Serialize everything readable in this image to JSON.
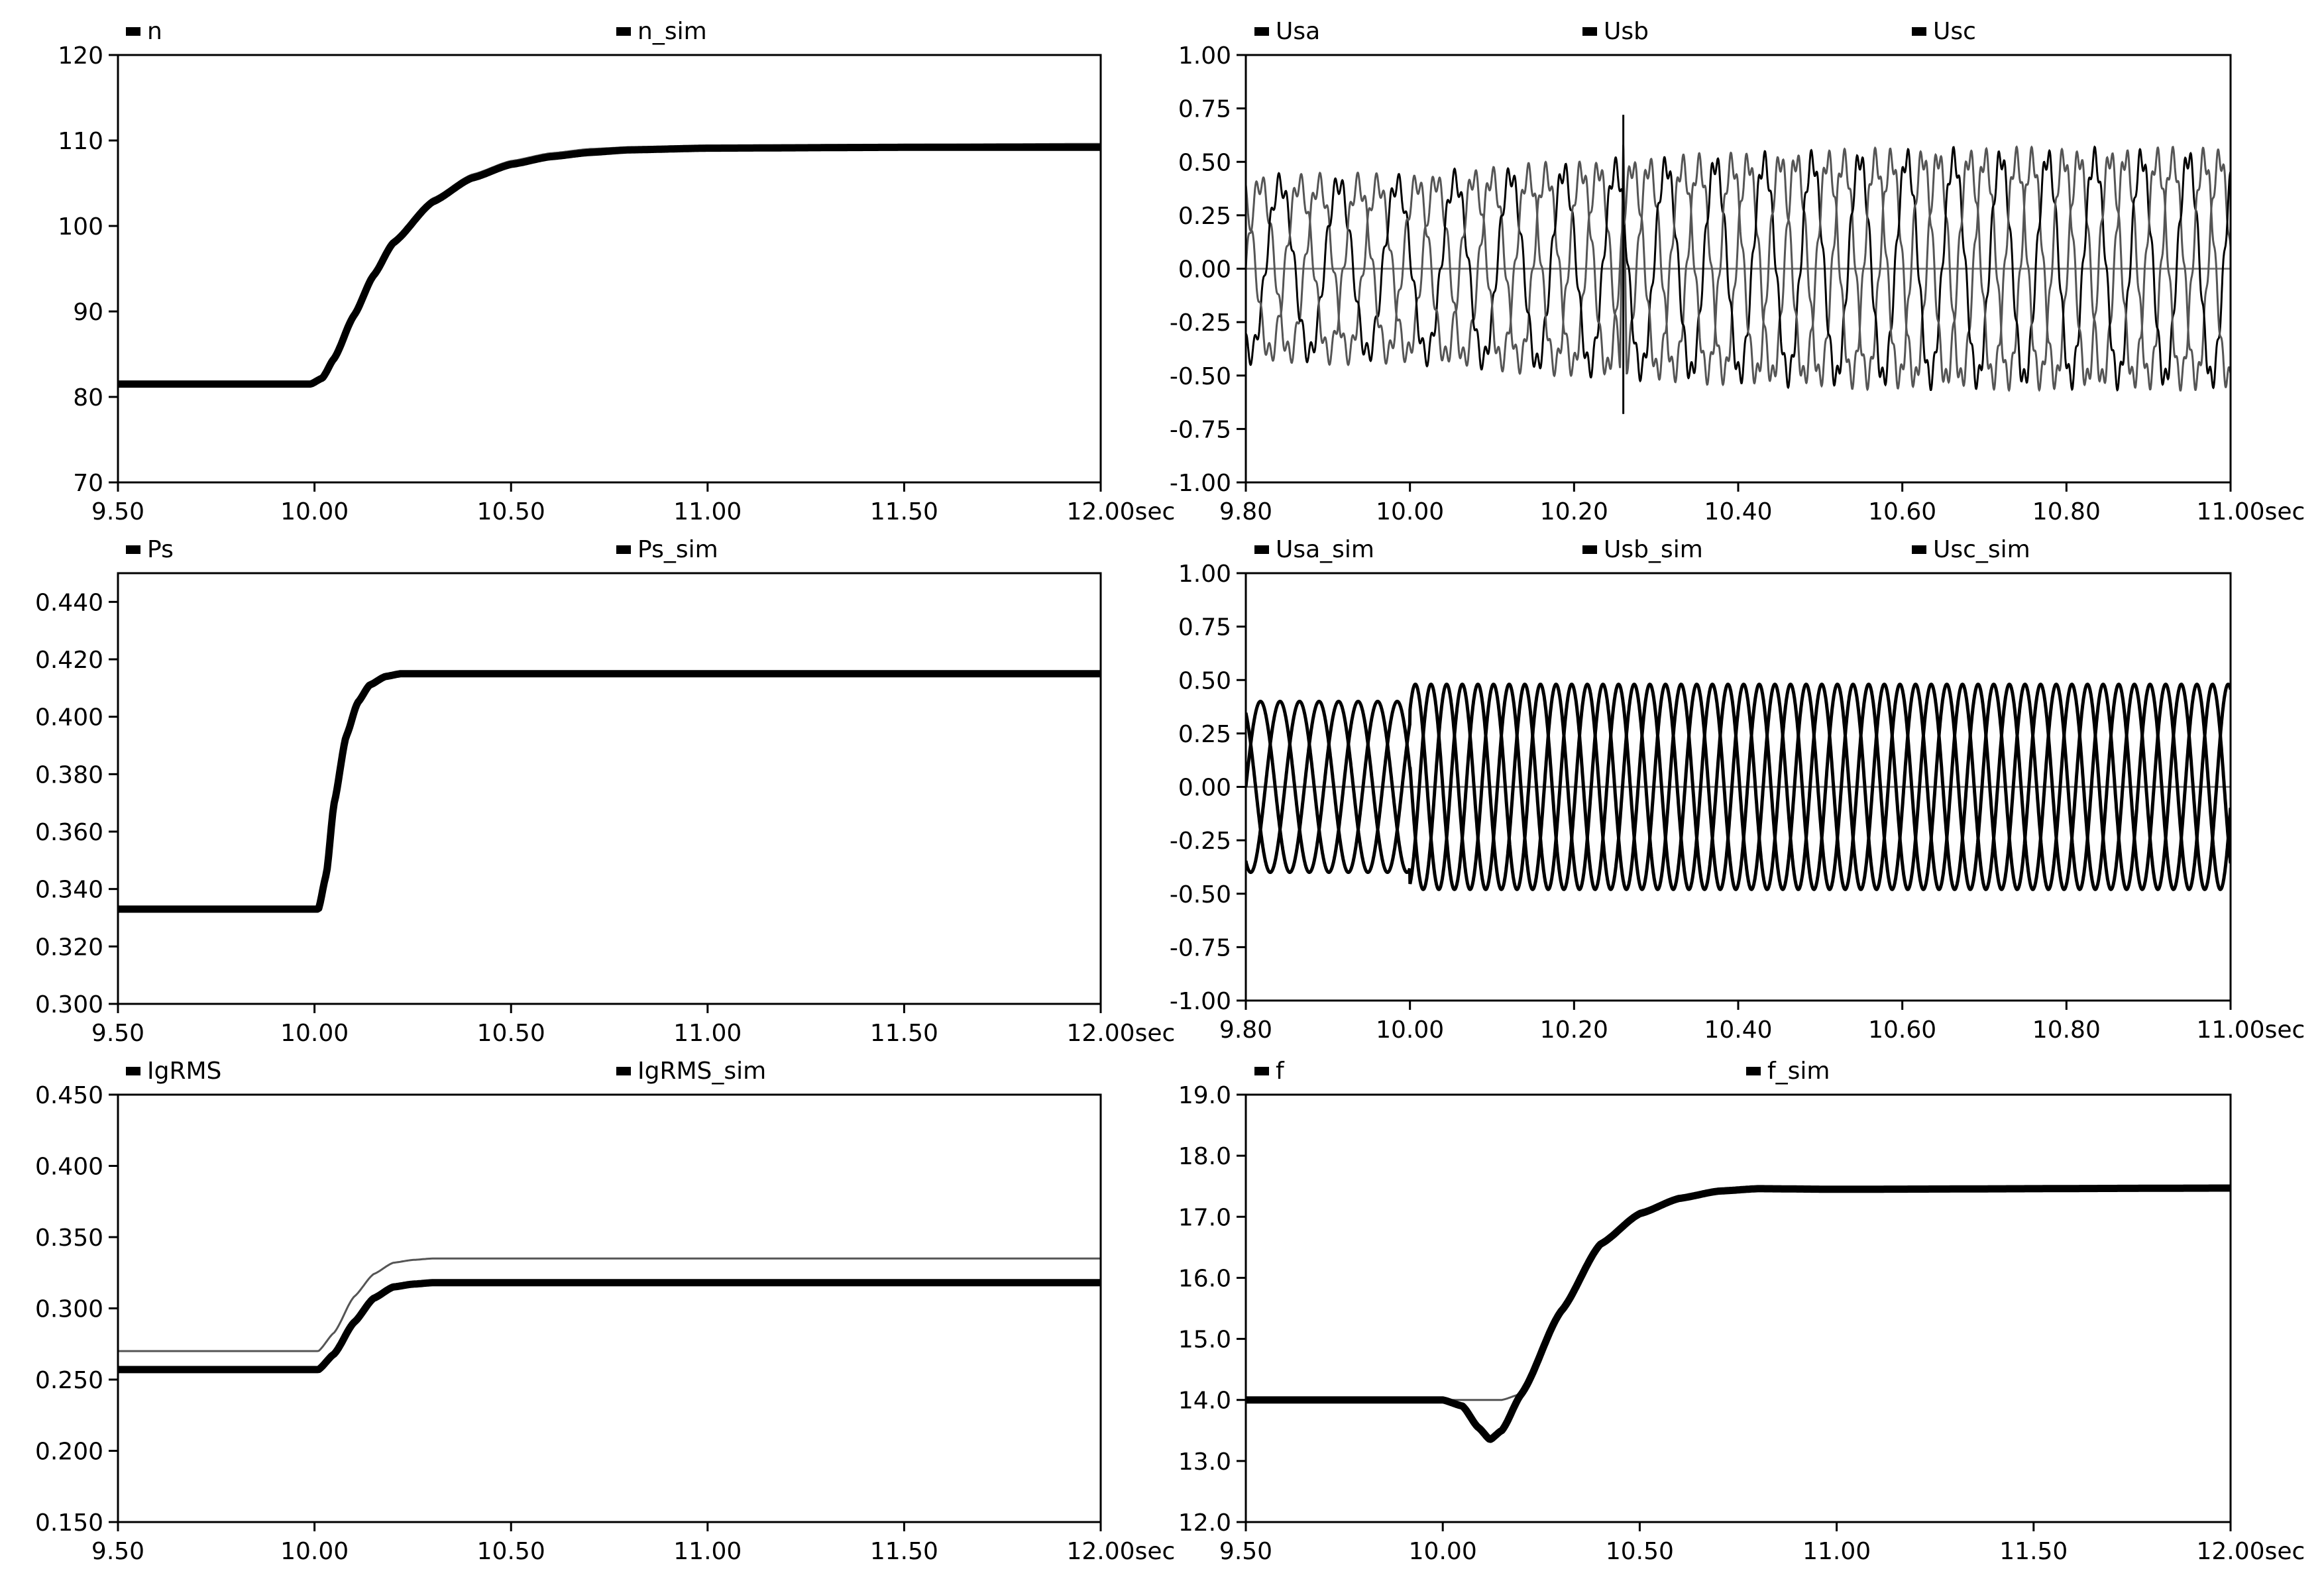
{
  "style": {
    "background": "#ffffff",
    "axis_color": "#000000",
    "trace_primary": "#000000",
    "trace_secondary": "#555555",
    "zero_line": "#808080"
  },
  "chart_data": [
    {
      "id": "n",
      "type": "line",
      "xlim": [
        9.5,
        12.0
      ],
      "ylim": [
        70,
        120
      ],
      "xticks": [
        9.5,
        10.0,
        10.5,
        11.0,
        11.5,
        12.0
      ],
      "xtick_labels": [
        "9.50",
        "10.00",
        "10.50",
        "11.00",
        "11.50",
        "12.00"
      ],
      "yticks": [
        70,
        80,
        90,
        100,
        110,
        120
      ],
      "ytick_labels": [
        "70",
        "80",
        "90",
        "100",
        "110",
        "120"
      ],
      "xunit": "sec",
      "legend": [
        "n",
        "n_sim"
      ],
      "series": [
        {
          "name": "n",
          "x": [
            9.5,
            9.99,
            10.02,
            10.05,
            10.1,
            10.15,
            10.2,
            10.3,
            10.4,
            10.5,
            10.6,
            10.7,
            10.8,
            11.0,
            11.5,
            12.0
          ],
          "values": [
            81.5,
            81.5,
            82.2,
            84.5,
            89.5,
            94.2,
            98.0,
            102.8,
            105.6,
            107.2,
            108.1,
            108.6,
            108.9,
            109.1,
            109.2,
            109.2
          ]
        },
        {
          "name": "n_sim",
          "x": [
            9.5,
            9.99,
            10.02,
            10.05,
            10.1,
            10.15,
            10.2,
            10.3,
            10.4,
            10.5,
            10.6,
            10.7,
            10.8,
            11.0,
            11.5,
            12.0
          ],
          "values": [
            81.5,
            81.5,
            82.3,
            84.7,
            89.8,
            94.6,
            98.4,
            103.2,
            106.0,
            107.6,
            108.5,
            109.0,
            109.2,
            109.4,
            109.5,
            109.6
          ]
        }
      ]
    },
    {
      "id": "usabc",
      "type": "line",
      "xlim": [
        9.8,
        11.0
      ],
      "ylim": [
        -1.0,
        1.0
      ],
      "xticks": [
        9.8,
        10.0,
        10.2,
        10.4,
        10.6,
        10.8,
        11.0
      ],
      "xtick_labels": [
        "9.80",
        "10.00",
        "10.20",
        "10.40",
        "10.60",
        "10.80",
        "11.00"
      ],
      "yticks": [
        -1.0,
        -0.75,
        -0.5,
        -0.25,
        0.0,
        0.25,
        0.5,
        0.75,
        1.0
      ],
      "ytick_labels": [
        "-1.00",
        "-0.75",
        "-0.50",
        "-0.25",
        "0.00",
        "0.25",
        "0.50",
        "0.75",
        "1.00"
      ],
      "xunit": "sec",
      "legend": [
        "Usa",
        "Usb",
        "Usc"
      ],
      "waveform": {
        "amplitude_before": 0.4,
        "amplitude_after": 0.52,
        "frequency_before": 14.0,
        "frequency_after": 17.5,
        "transition": [
          10.0,
          10.7
        ],
        "spike": {
          "t": 10.26,
          "peak": 0.72,
          "trough": -0.68
        }
      }
    },
    {
      "id": "ps",
      "type": "line",
      "xlim": [
        9.5,
        12.0
      ],
      "ylim": [
        0.3,
        0.45
      ],
      "xticks": [
        9.5,
        10.0,
        10.5,
        11.0,
        11.5,
        12.0
      ],
      "xtick_labels": [
        "9.50",
        "10.00",
        "10.50",
        "11.00",
        "11.50",
        "12.00"
      ],
      "yticks": [
        0.3,
        0.32,
        0.34,
        0.36,
        0.38,
        0.4,
        0.42,
        0.44
      ],
      "ytick_labels": [
        "0.300",
        "0.320",
        "0.340",
        "0.360",
        "0.380",
        "0.400",
        "0.420",
        "0.440"
      ],
      "xunit": "sec",
      "legend": [
        "Ps",
        "Ps_sim"
      ],
      "series": [
        {
          "name": "Ps",
          "x": [
            9.5,
            10.01,
            10.03,
            10.05,
            10.08,
            10.11,
            10.14,
            10.18,
            10.22,
            10.3,
            12.0
          ],
          "values": [
            0.333,
            0.333,
            0.345,
            0.37,
            0.393,
            0.405,
            0.411,
            0.414,
            0.415,
            0.415,
            0.415
          ]
        },
        {
          "name": "Ps_sim",
          "x": [
            9.5,
            10.01,
            10.03,
            10.05,
            10.08,
            10.11,
            10.14,
            10.18,
            10.22,
            10.3,
            12.0
          ],
          "values": [
            0.333,
            0.333,
            0.345,
            0.37,
            0.393,
            0.405,
            0.411,
            0.414,
            0.415,
            0.415,
            0.415
          ]
        }
      ]
    },
    {
      "id": "usabc_sim",
      "type": "line",
      "xlim": [
        9.8,
        11.0
      ],
      "ylim": [
        -1.0,
        1.0
      ],
      "xticks": [
        9.8,
        10.0,
        10.2,
        10.4,
        10.6,
        10.8,
        11.0
      ],
      "xtick_labels": [
        "9.80",
        "10.00",
        "10.20",
        "10.40",
        "10.60",
        "10.80",
        "11.00"
      ],
      "yticks": [
        -1.0,
        -0.75,
        -0.5,
        -0.25,
        0.0,
        0.25,
        0.5,
        0.75,
        1.0
      ],
      "ytick_labels": [
        "-1.00",
        "-0.75",
        "-0.50",
        "-0.25",
        "0.00",
        "0.25",
        "0.50",
        "0.75",
        "1.00"
      ],
      "xunit": "sec",
      "legend": [
        "Usa_sim",
        "Usb_sim",
        "Usc_sim"
      ],
      "waveform": {
        "amplitude_before": 0.4,
        "amplitude_after": 0.48,
        "frequency_before": 14.0,
        "frequency_after": 17.5,
        "step_time": 10.0
      }
    },
    {
      "id": "igrms",
      "type": "line",
      "xlim": [
        9.5,
        12.0
      ],
      "ylim": [
        0.15,
        0.45
      ],
      "xticks": [
        9.5,
        10.0,
        10.5,
        11.0,
        11.5,
        12.0
      ],
      "xtick_labels": [
        "9.50",
        "10.00",
        "10.50",
        "11.00",
        "11.50",
        "12.00"
      ],
      "yticks": [
        0.15,
        0.2,
        0.25,
        0.3,
        0.35,
        0.4,
        0.45
      ],
      "ytick_labels": [
        "0.150",
        "0.200",
        "0.250",
        "0.300",
        "0.350",
        "0.400",
        "0.450"
      ],
      "xunit": "sec",
      "legend": [
        "IgRMS",
        "IgRMS_sim"
      ],
      "series": [
        {
          "name": "IgRMS",
          "x": [
            9.5,
            10.01,
            10.05,
            10.1,
            10.15,
            10.2,
            10.25,
            10.3,
            12.0
          ],
          "values": [
            0.257,
            0.257,
            0.268,
            0.29,
            0.307,
            0.315,
            0.317,
            0.318,
            0.318
          ]
        },
        {
          "name": "IgRMS_sim",
          "x": [
            9.5,
            10.01,
            10.05,
            10.1,
            10.15,
            10.2,
            10.25,
            10.3,
            12.0
          ],
          "values": [
            0.27,
            0.27,
            0.283,
            0.308,
            0.324,
            0.332,
            0.334,
            0.335,
            0.335
          ]
        }
      ]
    },
    {
      "id": "f",
      "type": "line",
      "xlim": [
        9.5,
        12.0
      ],
      "ylim": [
        12.0,
        19.0
      ],
      "xticks": [
        9.5,
        10.0,
        10.5,
        11.0,
        11.5,
        12.0
      ],
      "xtick_labels": [
        "9.50",
        "10.00",
        "10.50",
        "11.00",
        "11.50",
        "12.00"
      ],
      "yticks": [
        12,
        13,
        14,
        15,
        16,
        17,
        18,
        19
      ],
      "ytick_labels": [
        "12.0",
        "13.0",
        "14.0",
        "15.0",
        "16.0",
        "17.0",
        "18.0",
        "19.0"
      ],
      "xunit": "sec",
      "legend": [
        "f",
        "f_sim"
      ],
      "series": [
        {
          "name": "f",
          "x": [
            9.5,
            10.0,
            10.05,
            10.09,
            10.12,
            10.15,
            10.2,
            10.3,
            10.4,
            10.5,
            10.6,
            10.7,
            10.8,
            11.0,
            12.0
          ],
          "values": [
            14.0,
            14.0,
            13.9,
            13.55,
            13.35,
            13.5,
            14.1,
            15.45,
            16.55,
            17.05,
            17.3,
            17.42,
            17.46,
            17.45,
            17.47
          ]
        },
        {
          "name": "f_sim",
          "x": [
            9.5,
            10.0,
            10.05,
            10.1,
            10.15,
            10.2,
            10.3,
            10.4,
            10.5,
            10.6,
            10.7,
            10.8,
            11.0,
            12.0
          ],
          "values": [
            14.0,
            14.0,
            14.0,
            14.0,
            14.0,
            14.1,
            15.5,
            16.6,
            17.1,
            17.32,
            17.43,
            17.47,
            17.45,
            17.48
          ]
        }
      ]
    }
  ]
}
